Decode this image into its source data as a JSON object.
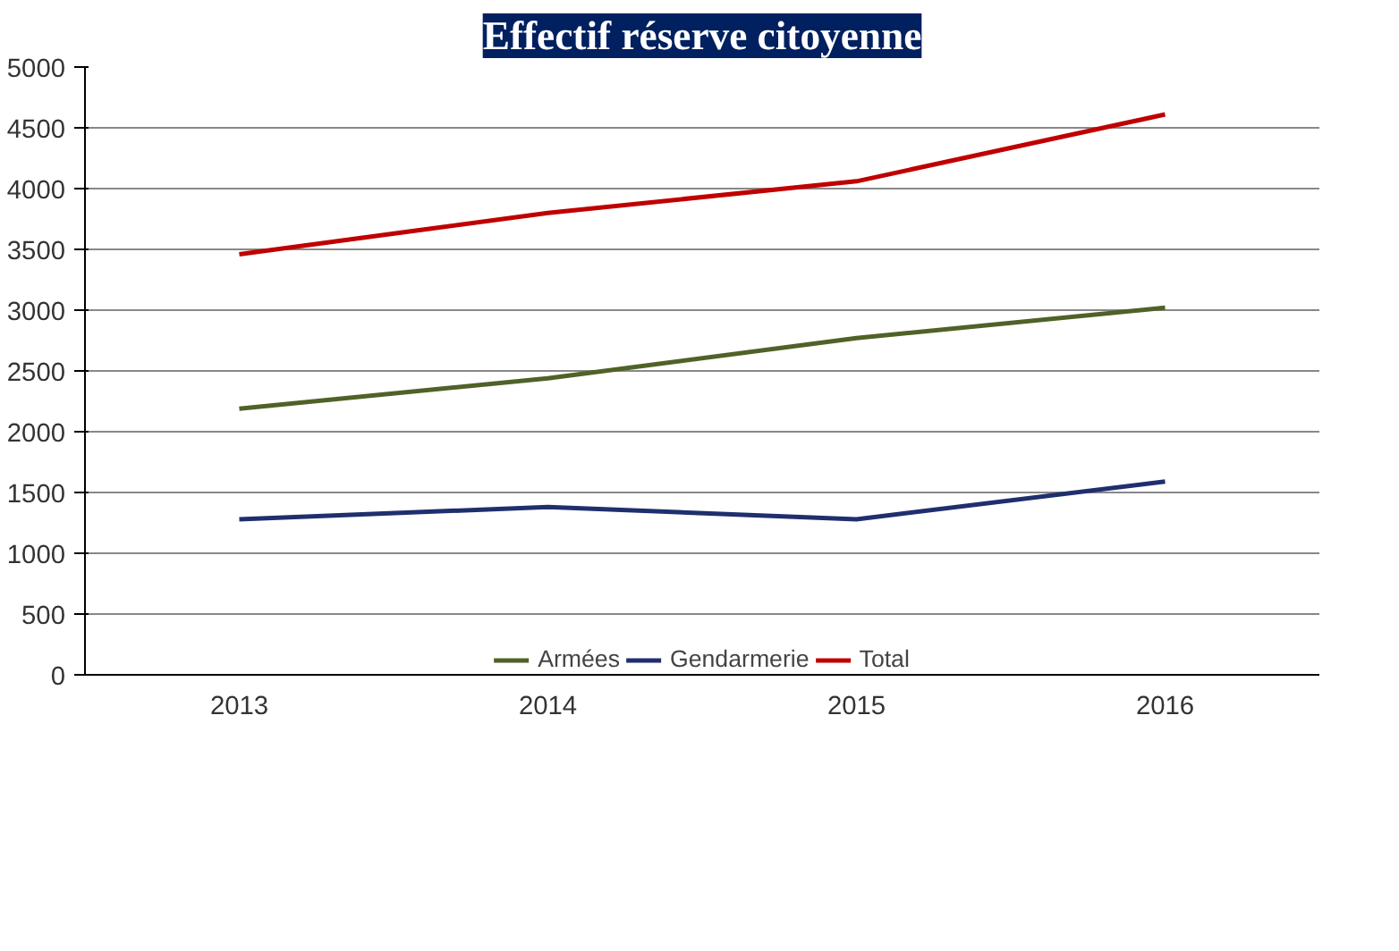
{
  "chart_data": {
    "type": "line",
    "title": "Effectif réserve citoyenne",
    "categories": [
      "2013",
      "2014",
      "2015",
      "2016"
    ],
    "series": [
      {
        "name": "Armées",
        "color": "#4f6228",
        "values": [
          2190,
          2440,
          2770,
          3020
        ]
      },
      {
        "name": "Gendarmerie",
        "color": "#1f2f6e",
        "values": [
          1280,
          1380,
          1280,
          1590
        ]
      },
      {
        "name": "Total",
        "color": "#c00000",
        "values": [
          3460,
          3800,
          4060,
          4610
        ]
      }
    ],
    "ylim": [
      0,
      5000
    ],
    "yticks": [
      0,
      500,
      1000,
      1500,
      2000,
      2500,
      3000,
      3500,
      4000,
      4500,
      5000
    ],
    "grid": "y",
    "legend": "bottom",
    "marker": "none",
    "line_style": "solid"
  }
}
